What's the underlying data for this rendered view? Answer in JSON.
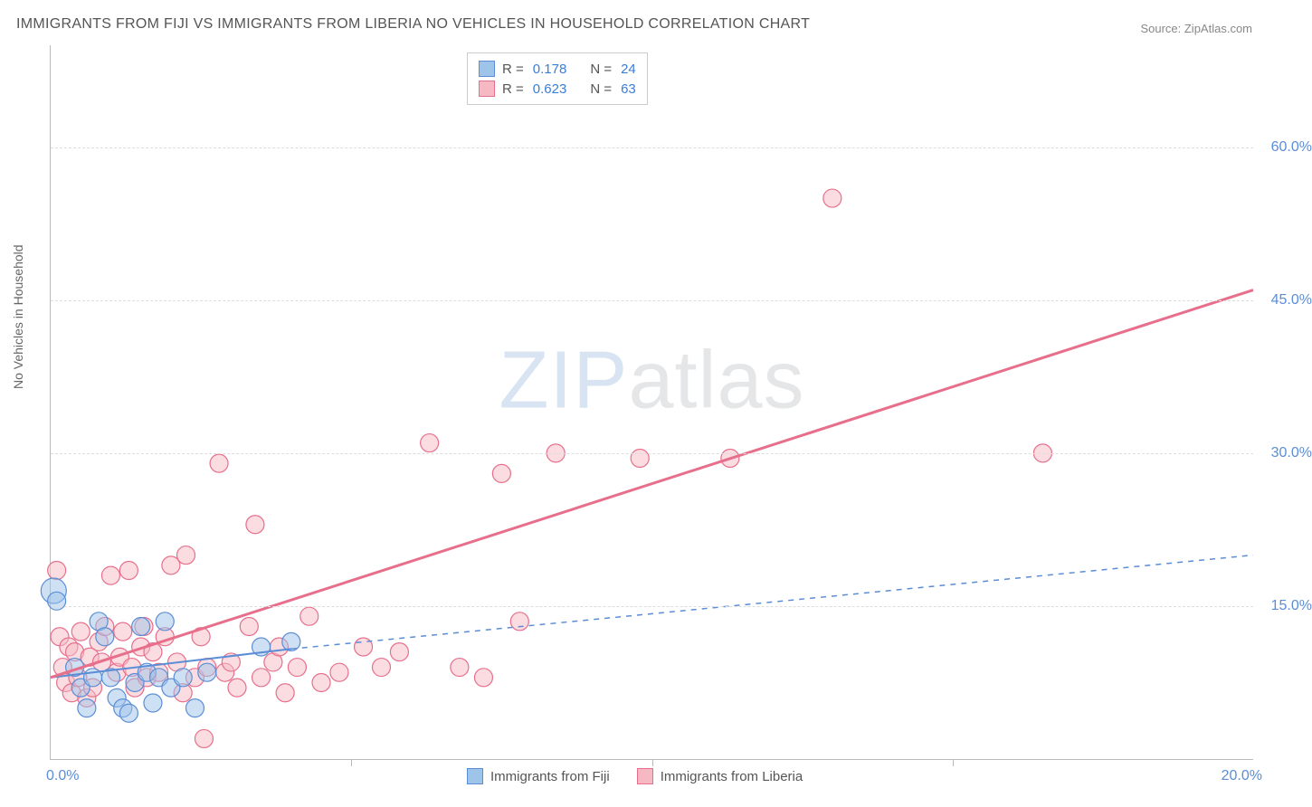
{
  "title": "IMMIGRANTS FROM FIJI VS IMMIGRANTS FROM LIBERIA NO VEHICLES IN HOUSEHOLD CORRELATION CHART",
  "source": "Source: ZipAtlas.com",
  "ylabel": "No Vehicles in Household",
  "watermark_zip": "ZIP",
  "watermark_atlas": "atlas",
  "chart": {
    "type": "scatter-with-regression",
    "xlim": [
      0,
      20
    ],
    "ylim": [
      0,
      70
    ],
    "ytick_values": [
      15,
      30,
      45,
      60
    ],
    "ytick_labels": [
      "15.0%",
      "30.0%",
      "45.0%",
      "60.0%"
    ],
    "xtick_values": [
      5,
      10,
      15
    ],
    "xtick_origin_label": "0.0%",
    "xtick_max_label": "20.0%",
    "grid_color": "#dddddd",
    "axis_color": "#bbbbbb",
    "background_color": "#ffffff",
    "marker_radius": 10,
    "marker_opacity": 0.5,
    "series": {
      "fiji": {
        "label": "Immigrants from Fiji",
        "color_fill": "#9ec4ea",
        "color_stroke": "#5b8dd6",
        "R": "0.178",
        "N": "24",
        "regression": {
          "x1": 0,
          "y1": 8.0,
          "x2": 4.0,
          "y2": 10.8,
          "extrap_x2": 20,
          "extrap_y2": 20.0,
          "width": 2
        },
        "points": [
          [
            0.05,
            16.5,
            14
          ],
          [
            0.1,
            15.5,
            10
          ],
          [
            0.4,
            9.0,
            10
          ],
          [
            0.5,
            7.0,
            10
          ],
          [
            0.6,
            5.0,
            10
          ],
          [
            0.7,
            8.0,
            10
          ],
          [
            0.8,
            13.5,
            10
          ],
          [
            0.9,
            12.0,
            10
          ],
          [
            1.0,
            8.0,
            10
          ],
          [
            1.1,
            6.0,
            10
          ],
          [
            1.2,
            5.0,
            10
          ],
          [
            1.3,
            4.5,
            10
          ],
          [
            1.4,
            7.5,
            10
          ],
          [
            1.5,
            13.0,
            10
          ],
          [
            1.6,
            8.5,
            10
          ],
          [
            1.7,
            5.5,
            10
          ],
          [
            1.8,
            8.0,
            10
          ],
          [
            1.9,
            13.5,
            10
          ],
          [
            2.0,
            7.0,
            10
          ],
          [
            2.2,
            8.0,
            10
          ],
          [
            2.4,
            5.0,
            10
          ],
          [
            2.6,
            8.5,
            10
          ],
          [
            3.5,
            11.0,
            10
          ],
          [
            4.0,
            11.5,
            10
          ]
        ]
      },
      "liberia": {
        "label": "Immigrants from Liberia",
        "color_fill": "#f6b9c4",
        "color_stroke": "#e76f8c",
        "R": "0.623",
        "N": "63",
        "regression": {
          "x1": 0,
          "y1": 8.0,
          "x2": 20,
          "y2": 46.0,
          "width": 3
        },
        "points": [
          [
            0.1,
            18.5,
            10
          ],
          [
            0.15,
            12.0,
            10
          ],
          [
            0.2,
            9.0,
            10
          ],
          [
            0.25,
            7.5,
            10
          ],
          [
            0.3,
            11.0,
            10
          ],
          [
            0.35,
            6.5,
            10
          ],
          [
            0.4,
            10.5,
            10
          ],
          [
            0.45,
            8.0,
            10
          ],
          [
            0.5,
            12.5,
            10
          ],
          [
            0.6,
            6.0,
            10
          ],
          [
            0.65,
            10.0,
            10
          ],
          [
            0.7,
            7.0,
            10
          ],
          [
            0.8,
            11.5,
            10
          ],
          [
            0.85,
            9.5,
            10
          ],
          [
            0.9,
            13.0,
            10
          ],
          [
            1.0,
            18.0,
            10
          ],
          [
            1.1,
            8.5,
            10
          ],
          [
            1.15,
            10.0,
            10
          ],
          [
            1.2,
            12.5,
            10
          ],
          [
            1.3,
            18.5,
            10
          ],
          [
            1.35,
            9.0,
            10
          ],
          [
            1.4,
            7.0,
            10
          ],
          [
            1.5,
            11.0,
            10
          ],
          [
            1.55,
            13.0,
            10
          ],
          [
            1.6,
            8.0,
            10
          ],
          [
            1.7,
            10.5,
            10
          ],
          [
            1.8,
            8.5,
            10
          ],
          [
            1.9,
            12.0,
            10
          ],
          [
            2.0,
            19.0,
            10
          ],
          [
            2.1,
            9.5,
            10
          ],
          [
            2.2,
            6.5,
            10
          ],
          [
            2.25,
            20.0,
            10
          ],
          [
            2.4,
            8.0,
            10
          ],
          [
            2.5,
            12.0,
            10
          ],
          [
            2.55,
            2.0,
            10
          ],
          [
            2.6,
            9.0,
            10
          ],
          [
            2.8,
            29.0,
            10
          ],
          [
            2.9,
            8.5,
            10
          ],
          [
            3.0,
            9.5,
            10
          ],
          [
            3.1,
            7.0,
            10
          ],
          [
            3.3,
            13.0,
            10
          ],
          [
            3.4,
            23.0,
            10
          ],
          [
            3.5,
            8.0,
            10
          ],
          [
            3.7,
            9.5,
            10
          ],
          [
            3.8,
            11.0,
            10
          ],
          [
            3.9,
            6.5,
            10
          ],
          [
            4.1,
            9.0,
            10
          ],
          [
            4.3,
            14.0,
            10
          ],
          [
            4.5,
            7.5,
            10
          ],
          [
            4.8,
            8.5,
            10
          ],
          [
            5.2,
            11.0,
            10
          ],
          [
            5.5,
            9.0,
            10
          ],
          [
            5.8,
            10.5,
            10
          ],
          [
            6.3,
            31.0,
            10
          ],
          [
            6.8,
            9.0,
            10
          ],
          [
            7.2,
            8.0,
            10
          ],
          [
            7.5,
            28.0,
            10
          ],
          [
            7.8,
            13.5,
            10
          ],
          [
            8.4,
            30.0,
            10
          ],
          [
            9.8,
            29.5,
            10
          ],
          [
            11.3,
            29.5,
            10
          ],
          [
            13.0,
            55.0,
            10
          ],
          [
            16.5,
            30.0,
            10
          ]
        ]
      }
    }
  },
  "legend_top": {
    "r_label": "R =",
    "n_label": "N ="
  }
}
